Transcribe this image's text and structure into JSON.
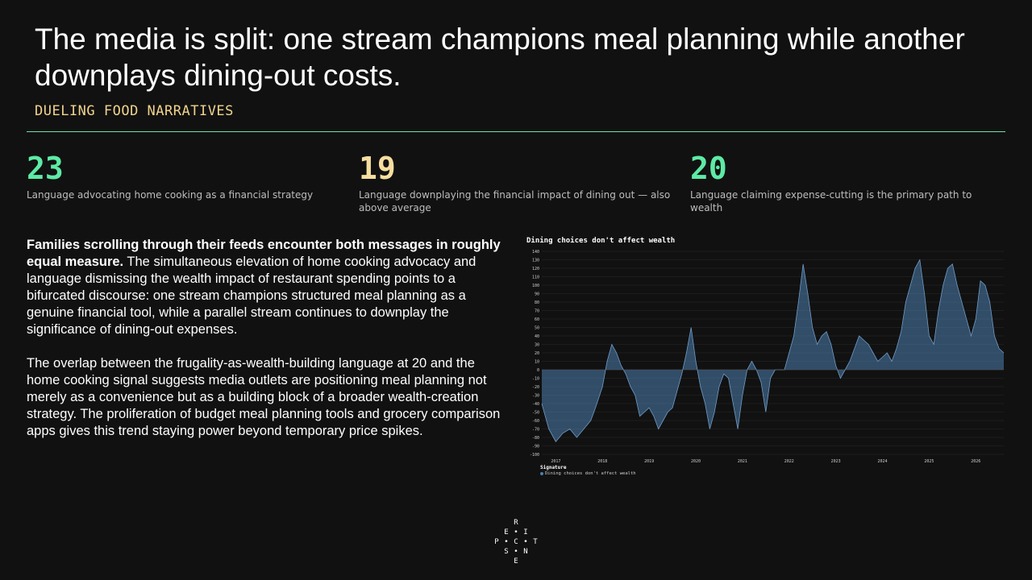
{
  "header": {
    "title": "The media is split: one stream champions meal planning while another downplays dining-out costs.",
    "subtitle": "DUELING FOOD NARRATIVES"
  },
  "stats": [
    {
      "value": "23",
      "label": "Language advocating home cooking as a financial strategy",
      "color": "#5eeaa5"
    },
    {
      "value": "19",
      "label": "Language downplaying the financial impact of dining out — also above average",
      "color": "#f6dea0"
    },
    {
      "value": "20",
      "label": "Language claiming expense-cutting is the primary path to wealth",
      "color": "#5eeaa5"
    }
  ],
  "body": {
    "p1_lead": "Families scrolling through their feeds encounter both messages in roughly equal measure.",
    "p1_rest": " The simultaneous elevation of home cooking advocacy and language dismissing the wealth impact of restaurant spending points to a bifurcated discourse: one stream champions structured meal planning as a genuine financial tool, while a parallel stream continues to downplay the significance of dining-out expenses.",
    "p2": "The overlap between the frugality-as-wealth-building language at 20 and the home cooking signal suggests media outlets are positioning meal planning not merely as a convenience but as a building block of a broader wealth-creation strategy. The proliferation of budget meal planning tools and grocery comparison apps gives this trend staying power beyond temporary price spikes."
  },
  "chart_data": {
    "type": "area",
    "title": "Dining choices don't affect wealth",
    "ylim": [
      -100,
      140
    ],
    "yticks": [
      140,
      130,
      120,
      110,
      100,
      90,
      80,
      70,
      60,
      50,
      40,
      30,
      20,
      10,
      0,
      -10,
      -20,
      -30,
      -40,
      -50,
      -60,
      -70,
      -80,
      -90,
      -100
    ],
    "xlim": [
      2016.7,
      2026.6
    ],
    "xticks": [
      "2017",
      "2018",
      "2019",
      "2020",
      "2021",
      "2022",
      "2023",
      "2024",
      "2025",
      "2026"
    ],
    "grid": true,
    "legend_title": "Signature",
    "series": [
      {
        "name": "Dining choices don't affect wealth",
        "color": "#4f7fae",
        "x": [
          2016.7,
          2016.85,
          2017.0,
          2017.15,
          2017.3,
          2017.45,
          2017.6,
          2017.75,
          2017.85,
          2018.0,
          2018.1,
          2018.2,
          2018.3,
          2018.4,
          2018.5,
          2018.6,
          2018.7,
          2018.8,
          2018.9,
          2019.0,
          2019.1,
          2019.2,
          2019.3,
          2019.4,
          2019.5,
          2019.6,
          2019.7,
          2019.8,
          2019.9,
          2020.0,
          2020.1,
          2020.2,
          2020.3,
          2020.4,
          2020.5,
          2020.6,
          2020.7,
          2020.8,
          2020.9,
          2021.0,
          2021.1,
          2021.2,
          2021.3,
          2021.4,
          2021.5,
          2021.6,
          2021.7,
          2021.8,
          2021.9,
          2022.0,
          2022.1,
          2022.2,
          2022.3,
          2022.4,
          2022.5,
          2022.6,
          2022.7,
          2022.8,
          2022.9,
          2023.0,
          2023.1,
          2023.2,
          2023.3,
          2023.4,
          2023.5,
          2023.6,
          2023.7,
          2023.8,
          2023.9,
          2024.0,
          2024.1,
          2024.2,
          2024.3,
          2024.4,
          2024.5,
          2024.6,
          2024.7,
          2024.8,
          2024.9,
          2025.0,
          2025.1,
          2025.2,
          2025.3,
          2025.4,
          2025.5,
          2025.6,
          2025.7,
          2025.8,
          2025.9,
          2026.0,
          2026.1,
          2026.2,
          2026.3,
          2026.4,
          2026.5,
          2026.6
        ],
        "values": [
          -40,
          -70,
          -85,
          -75,
          -70,
          -80,
          -70,
          -60,
          -45,
          -20,
          10,
          30,
          20,
          5,
          -5,
          -20,
          -30,
          -55,
          -50,
          -45,
          -55,
          -70,
          -60,
          -50,
          -45,
          -25,
          -5,
          20,
          50,
          10,
          -20,
          -40,
          -70,
          -50,
          -20,
          -5,
          -10,
          -40,
          -70,
          -30,
          0,
          10,
          0,
          -15,
          -50,
          -10,
          0,
          0,
          0,
          20,
          40,
          80,
          125,
          90,
          50,
          30,
          40,
          45,
          30,
          5,
          -10,
          0,
          10,
          25,
          40,
          35,
          30,
          20,
          10,
          15,
          20,
          10,
          25,
          45,
          80,
          100,
          120,
          130,
          90,
          40,
          30,
          70,
          100,
          120,
          125,
          100,
          80,
          60,
          40,
          60,
          105,
          100,
          80,
          40,
          25,
          20
        ]
      }
    ]
  },
  "logo": {
    "letters": [
      "R",
      "E",
      "I",
      "P",
      "C",
      "T",
      "S",
      "N",
      "E"
    ],
    "dots": [
      "•",
      "•",
      "•",
      "•"
    ]
  }
}
